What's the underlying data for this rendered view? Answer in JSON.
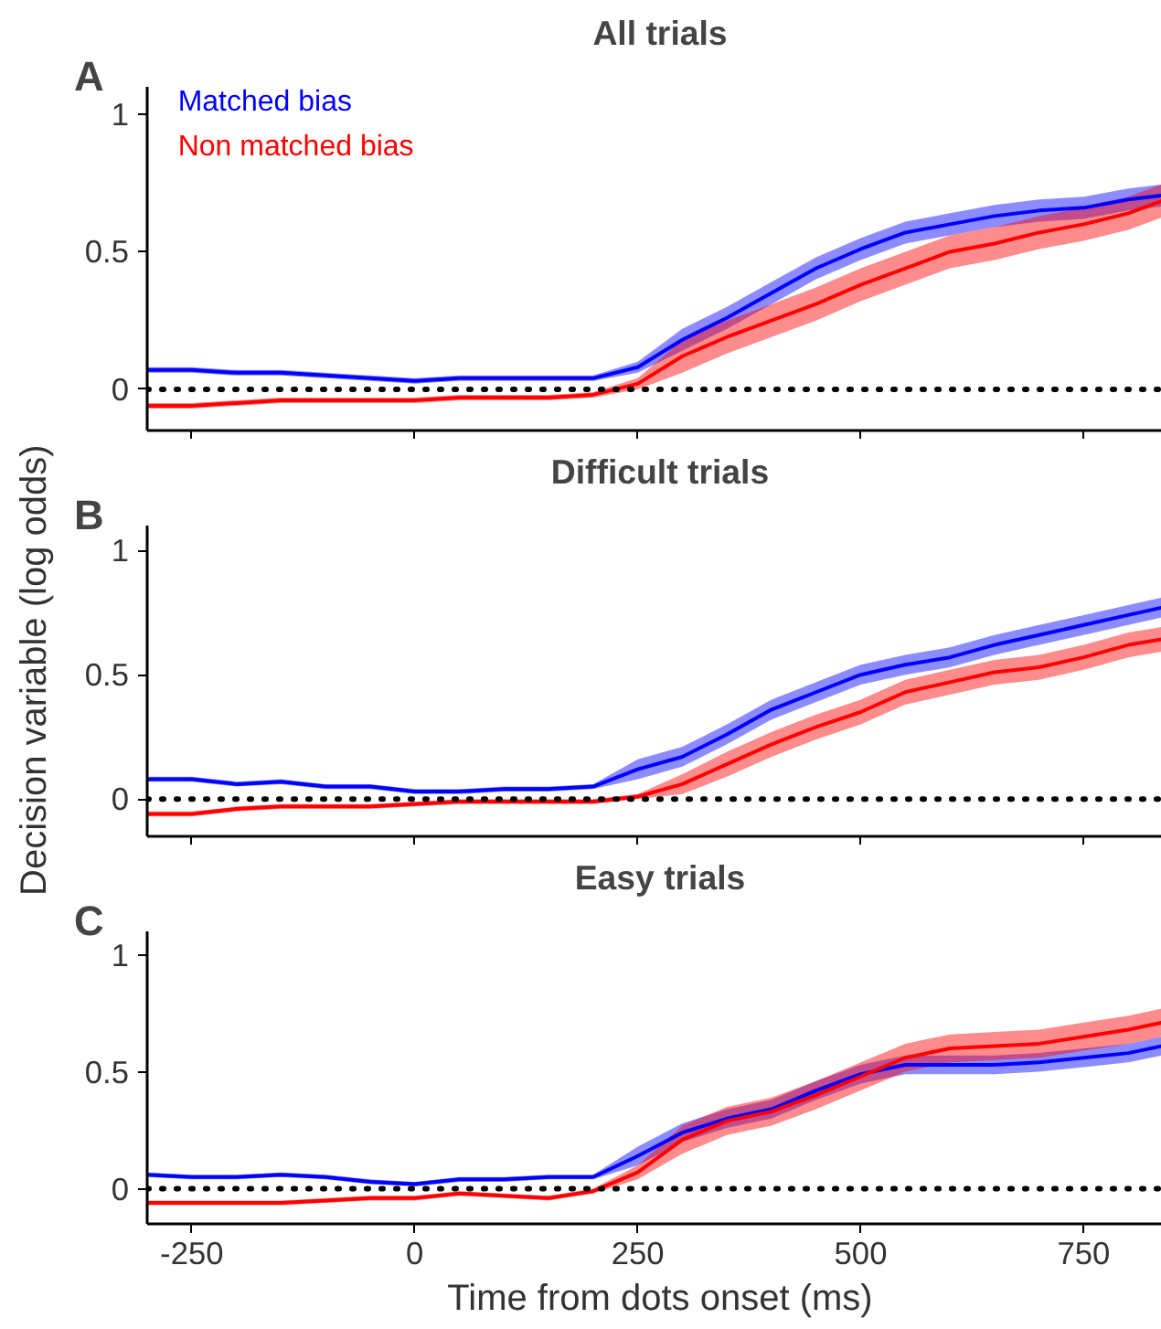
{
  "chart_data": [
    {
      "type": "line",
      "title": "All trials",
      "annotations": [
        "A"
      ],
      "xlim": [
        -300,
        850
      ],
      "ylim": [
        -0.15,
        1.1
      ],
      "xticks": [
        -250,
        0,
        250,
        500,
        750
      ],
      "yticks": [
        0,
        0.5,
        1
      ],
      "tick_labels": "y",
      "grid": false,
      "legend": "top left",
      "line_style": "solid",
      "x": [
        -300,
        -250,
        -200,
        -150,
        -100,
        -50,
        0,
        50,
        100,
        150,
        200,
        250,
        300,
        350,
        400,
        450,
        500,
        550,
        600,
        650,
        700,
        750,
        800,
        850
      ],
      "ref_lines": [
        {
          "axis": "y",
          "value": 0,
          "color": "#000000",
          "line_style": "dotted"
        }
      ],
      "series": [
        {
          "name": "Matched bias",
          "color": "#0000ff",
          "values": [
            0.07,
            0.07,
            0.06,
            0.06,
            0.05,
            0.04,
            0.03,
            0.04,
            0.04,
            0.04,
            0.04,
            0.08,
            0.18,
            0.26,
            0.35,
            0.44,
            0.51,
            0.57,
            0.6,
            0.63,
            0.65,
            0.66,
            0.69,
            0.71
          ],
          "lower": [
            0.06,
            0.06,
            0.05,
            0.05,
            0.04,
            0.03,
            0.02,
            0.03,
            0.03,
            0.03,
            0.03,
            0.06,
            0.14,
            0.22,
            0.31,
            0.4,
            0.47,
            0.53,
            0.56,
            0.59,
            0.61,
            0.62,
            0.65,
            0.67
          ],
          "upper": [
            0.08,
            0.08,
            0.07,
            0.07,
            0.06,
            0.05,
            0.04,
            0.05,
            0.05,
            0.05,
            0.05,
            0.1,
            0.22,
            0.3,
            0.39,
            0.48,
            0.55,
            0.61,
            0.64,
            0.67,
            0.69,
            0.7,
            0.73,
            0.75
          ]
        },
        {
          "name": "Non matched bias",
          "color": "#ff0000",
          "values": [
            -0.06,
            -0.06,
            -0.05,
            -0.04,
            -0.04,
            -0.04,
            -0.04,
            -0.03,
            -0.03,
            -0.03,
            -0.02,
            0.02,
            0.12,
            0.19,
            0.25,
            0.31,
            0.38,
            0.44,
            0.5,
            0.53,
            0.57,
            0.6,
            0.64,
            0.7
          ],
          "lower": [
            -0.07,
            -0.07,
            -0.06,
            -0.05,
            -0.05,
            -0.05,
            -0.05,
            -0.04,
            -0.04,
            -0.04,
            -0.03,
            0.0,
            0.06,
            0.13,
            0.19,
            0.25,
            0.32,
            0.38,
            0.44,
            0.47,
            0.51,
            0.54,
            0.58,
            0.64
          ],
          "upper": [
            -0.05,
            -0.05,
            -0.04,
            -0.03,
            -0.03,
            -0.03,
            -0.03,
            -0.02,
            -0.02,
            -0.02,
            -0.01,
            0.04,
            0.18,
            0.25,
            0.31,
            0.37,
            0.44,
            0.5,
            0.56,
            0.59,
            0.63,
            0.66,
            0.7,
            0.76
          ]
        }
      ]
    },
    {
      "type": "line",
      "title": "Difficult trials",
      "ylabel": "Decision variable (log odds)",
      "annotations": [
        "B"
      ],
      "xlim": [
        -300,
        850
      ],
      "ylim": [
        -0.15,
        1.1
      ],
      "xticks": [
        -250,
        0,
        250,
        500,
        750
      ],
      "yticks": [
        0,
        0.5,
        1
      ],
      "tick_labels": "y",
      "grid": false,
      "line_style": "solid",
      "x": [
        -300,
        -250,
        -200,
        -150,
        -100,
        -50,
        0,
        50,
        100,
        150,
        200,
        250,
        300,
        350,
        400,
        450,
        500,
        550,
        600,
        650,
        700,
        750,
        800,
        850
      ],
      "ref_lines": [
        {
          "axis": "y",
          "value": 0,
          "color": "#000000",
          "line_style": "dotted"
        }
      ],
      "series": [
        {
          "color": "#0000ff",
          "values": [
            0.08,
            0.08,
            0.06,
            0.07,
            0.05,
            0.05,
            0.03,
            0.03,
            0.04,
            0.04,
            0.05,
            0.12,
            0.17,
            0.26,
            0.36,
            0.43,
            0.5,
            0.54,
            0.57,
            0.62,
            0.66,
            0.7,
            0.74,
            0.78
          ],
          "lower": [
            0.07,
            0.07,
            0.05,
            0.06,
            0.04,
            0.04,
            0.02,
            0.02,
            0.03,
            0.03,
            0.04,
            0.08,
            0.13,
            0.22,
            0.32,
            0.39,
            0.46,
            0.5,
            0.53,
            0.58,
            0.62,
            0.66,
            0.7,
            0.74
          ],
          "upper": [
            0.09,
            0.09,
            0.07,
            0.08,
            0.06,
            0.06,
            0.04,
            0.04,
            0.05,
            0.05,
            0.06,
            0.16,
            0.21,
            0.3,
            0.4,
            0.47,
            0.54,
            0.58,
            0.61,
            0.66,
            0.7,
            0.74,
            0.78,
            0.82
          ]
        },
        {
          "color": "#ff0000",
          "values": [
            -0.06,
            -0.06,
            -0.04,
            -0.03,
            -0.03,
            -0.03,
            -0.02,
            -0.01,
            -0.01,
            -0.01,
            -0.01,
            0.01,
            0.06,
            0.14,
            0.22,
            0.29,
            0.35,
            0.43,
            0.47,
            0.51,
            0.53,
            0.57,
            0.62,
            0.65
          ],
          "lower": [
            -0.07,
            -0.07,
            -0.05,
            -0.04,
            -0.04,
            -0.04,
            -0.03,
            -0.02,
            -0.02,
            -0.02,
            -0.02,
            0.0,
            0.02,
            0.09,
            0.17,
            0.24,
            0.3,
            0.38,
            0.42,
            0.46,
            0.48,
            0.52,
            0.57,
            0.6
          ],
          "upper": [
            -0.05,
            -0.05,
            -0.03,
            -0.02,
            -0.02,
            -0.02,
            -0.01,
            0.0,
            0.0,
            0.0,
            0.0,
            0.02,
            0.1,
            0.19,
            0.27,
            0.34,
            0.4,
            0.48,
            0.52,
            0.56,
            0.58,
            0.62,
            0.67,
            0.7
          ]
        }
      ]
    },
    {
      "type": "line",
      "title": "Easy trials",
      "xlabel": "Time from dots onset (ms)",
      "annotations": [
        "C"
      ],
      "xlim": [
        -300,
        850
      ],
      "ylim": [
        -0.15,
        1.1
      ],
      "xticks": [
        -250,
        0,
        250,
        500,
        750
      ],
      "yticks": [
        0,
        0.5,
        1
      ],
      "grid": false,
      "line_style": "solid",
      "x": [
        -300,
        -250,
        -200,
        -150,
        -100,
        -50,
        0,
        50,
        100,
        150,
        200,
        250,
        300,
        350,
        400,
        450,
        500,
        550,
        600,
        650,
        700,
        750,
        800,
        850
      ],
      "ref_lines": [
        {
          "axis": "y",
          "value": 0,
          "color": "#000000",
          "line_style": "dotted"
        }
      ],
      "series": [
        {
          "color": "#0000ff",
          "values": [
            0.06,
            0.05,
            0.05,
            0.06,
            0.05,
            0.03,
            0.02,
            0.04,
            0.04,
            0.05,
            0.05,
            0.14,
            0.24,
            0.3,
            0.34,
            0.42,
            0.49,
            0.53,
            0.53,
            0.53,
            0.54,
            0.56,
            0.58,
            0.62
          ],
          "lower": [
            0.05,
            0.04,
            0.04,
            0.05,
            0.04,
            0.02,
            0.01,
            0.03,
            0.03,
            0.04,
            0.04,
            0.1,
            0.2,
            0.26,
            0.3,
            0.38,
            0.45,
            0.49,
            0.49,
            0.49,
            0.5,
            0.52,
            0.54,
            0.58
          ],
          "upper": [
            0.07,
            0.06,
            0.06,
            0.07,
            0.06,
            0.04,
            0.03,
            0.05,
            0.05,
            0.06,
            0.06,
            0.18,
            0.28,
            0.34,
            0.38,
            0.46,
            0.53,
            0.57,
            0.57,
            0.57,
            0.58,
            0.6,
            0.62,
            0.66
          ]
        },
        {
          "color": "#ff0000",
          "values": [
            -0.06,
            -0.06,
            -0.06,
            -0.06,
            -0.05,
            -0.04,
            -0.04,
            -0.02,
            -0.03,
            -0.04,
            -0.01,
            0.07,
            0.21,
            0.29,
            0.33,
            0.4,
            0.48,
            0.56,
            0.6,
            0.61,
            0.62,
            0.65,
            0.68,
            0.72
          ],
          "lower": [
            -0.07,
            -0.07,
            -0.07,
            -0.07,
            -0.06,
            -0.05,
            -0.05,
            -0.03,
            -0.04,
            -0.05,
            -0.02,
            0.04,
            0.15,
            0.23,
            0.27,
            0.34,
            0.42,
            0.5,
            0.54,
            0.55,
            0.56,
            0.59,
            0.62,
            0.66
          ],
          "upper": [
            -0.05,
            -0.05,
            -0.05,
            -0.05,
            -0.04,
            -0.03,
            -0.03,
            -0.01,
            -0.02,
            -0.03,
            0.0,
            0.1,
            0.27,
            0.35,
            0.39,
            0.46,
            0.54,
            0.62,
            0.66,
            0.67,
            0.68,
            0.71,
            0.74,
            0.78
          ]
        }
      ]
    }
  ]
}
